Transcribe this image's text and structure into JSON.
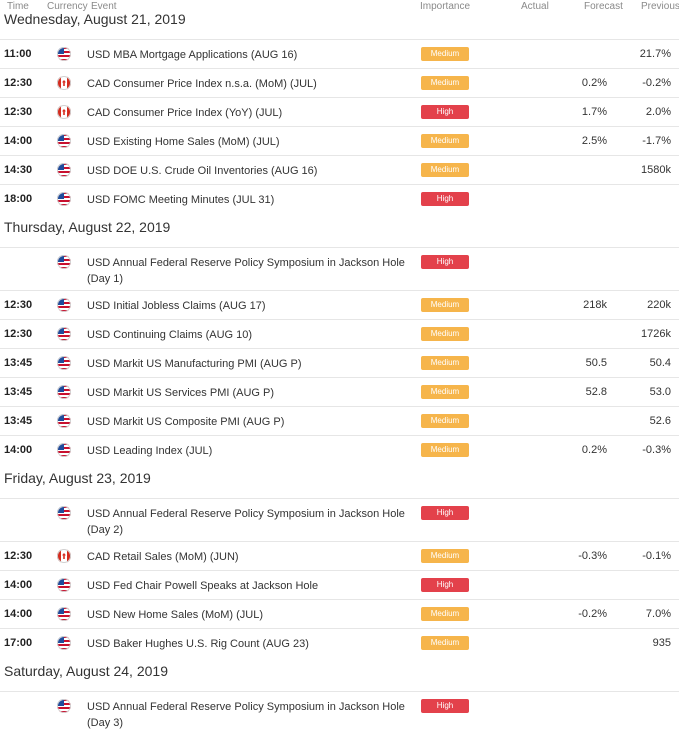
{
  "header": {
    "time": "Time",
    "currency": "Currency",
    "event": "Event",
    "importance": "Importance",
    "actual": "Actual",
    "forecast": "Forecast",
    "previous": "Previous"
  },
  "colors": {
    "medium": "#f6b54b",
    "high": "#e3414b"
  },
  "days": [
    {
      "label": "Wednesday, August 21, 2019",
      "events": [
        {
          "time": "11:00",
          "flag": "us-flag-icon",
          "event": "USD MBA Mortgage Applications (AUG 16)",
          "importance": "Medium",
          "actual": "",
          "forecast": "",
          "previous": "21.7%"
        },
        {
          "time": "12:30",
          "flag": "canada-flag-icon",
          "event": "CAD Consumer Price Index n.s.a. (MoM) (JUL)",
          "importance": "Medium",
          "actual": "",
          "forecast": "0.2%",
          "previous": "-0.2%"
        },
        {
          "time": "12:30",
          "flag": "canada-flag-icon",
          "event": "CAD Consumer Price Index (YoY) (JUL)",
          "importance": "High",
          "actual": "",
          "forecast": "1.7%",
          "previous": "2.0%"
        },
        {
          "time": "14:00",
          "flag": "us-flag-icon",
          "event": "USD Existing Home Sales (MoM) (JUL)",
          "importance": "Medium",
          "actual": "",
          "forecast": "2.5%",
          "previous": "-1.7%"
        },
        {
          "time": "14:30",
          "flag": "us-flag-icon",
          "event": "USD DOE U.S. Crude Oil Inventories (AUG 16)",
          "importance": "Medium",
          "actual": "",
          "forecast": "",
          "previous": "1580k"
        },
        {
          "time": "18:00",
          "flag": "us-flag-icon",
          "event": "USD FOMC Meeting Minutes (JUL 31)",
          "importance": "High",
          "actual": "",
          "forecast": "",
          "previous": ""
        }
      ]
    },
    {
      "label": "Thursday, August 22, 2019",
      "events": [
        {
          "time": "",
          "flag": "us-flag-icon",
          "event": "USD Annual Federal Reserve Policy Symposium in Jackson Hole (Day 1)",
          "importance": "High",
          "actual": "",
          "forecast": "",
          "previous": ""
        },
        {
          "time": "12:30",
          "flag": "us-flag-icon",
          "event": "USD Initial Jobless Claims (AUG 17)",
          "importance": "Medium",
          "actual": "",
          "forecast": "218k",
          "previous": "220k"
        },
        {
          "time": "12:30",
          "flag": "us-flag-icon",
          "event": "USD Continuing Claims (AUG 10)",
          "importance": "Medium",
          "actual": "",
          "forecast": "",
          "previous": "1726k"
        },
        {
          "time": "13:45",
          "flag": "us-flag-icon",
          "event": "USD Markit US Manufacturing PMI (AUG P)",
          "importance": "Medium",
          "actual": "",
          "forecast": "50.5",
          "previous": "50.4"
        },
        {
          "time": "13:45",
          "flag": "us-flag-icon",
          "event": "USD Markit US Services PMI (AUG P)",
          "importance": "Medium",
          "actual": "",
          "forecast": "52.8",
          "previous": "53.0"
        },
        {
          "time": "13:45",
          "flag": "us-flag-icon",
          "event": "USD Markit US Composite PMI (AUG P)",
          "importance": "Medium",
          "actual": "",
          "forecast": "",
          "previous": "52.6"
        },
        {
          "time": "14:00",
          "flag": "us-flag-icon",
          "event": "USD Leading Index (JUL)",
          "importance": "Medium",
          "actual": "",
          "forecast": "0.2%",
          "previous": "-0.3%"
        }
      ]
    },
    {
      "label": "Friday, August 23, 2019",
      "events": [
        {
          "time": "",
          "flag": "us-flag-icon",
          "event": "USD Annual Federal Reserve Policy Symposium in Jackson Hole (Day 2)",
          "importance": "High",
          "actual": "",
          "forecast": "",
          "previous": ""
        },
        {
          "time": "12:30",
          "flag": "canada-flag-icon",
          "event": "CAD Retail Sales (MoM) (JUN)",
          "importance": "Medium",
          "actual": "",
          "forecast": "-0.3%",
          "previous": "-0.1%"
        },
        {
          "time": "14:00",
          "flag": "us-flag-icon",
          "event": "USD Fed Chair Powell Speaks at Jackson Hole",
          "importance": "High",
          "actual": "",
          "forecast": "",
          "previous": ""
        },
        {
          "time": "14:00",
          "flag": "us-flag-icon",
          "event": "USD New Home Sales (MoM) (JUL)",
          "importance": "Medium",
          "actual": "",
          "forecast": "-0.2%",
          "previous": "7.0%"
        },
        {
          "time": "17:00",
          "flag": "us-flag-icon",
          "event": "USD Baker Hughes U.S. Rig Count (AUG 23)",
          "importance": "Medium",
          "actual": "",
          "forecast": "",
          "previous": "935"
        }
      ]
    },
    {
      "label": "Saturday, August 24, 2019",
      "events": [
        {
          "time": "",
          "flag": "us-flag-icon",
          "event": "USD Annual Federal Reserve Policy Symposium in Jackson Hole (Day 3)",
          "importance": "High",
          "actual": "",
          "forecast": "",
          "previous": ""
        }
      ]
    }
  ]
}
